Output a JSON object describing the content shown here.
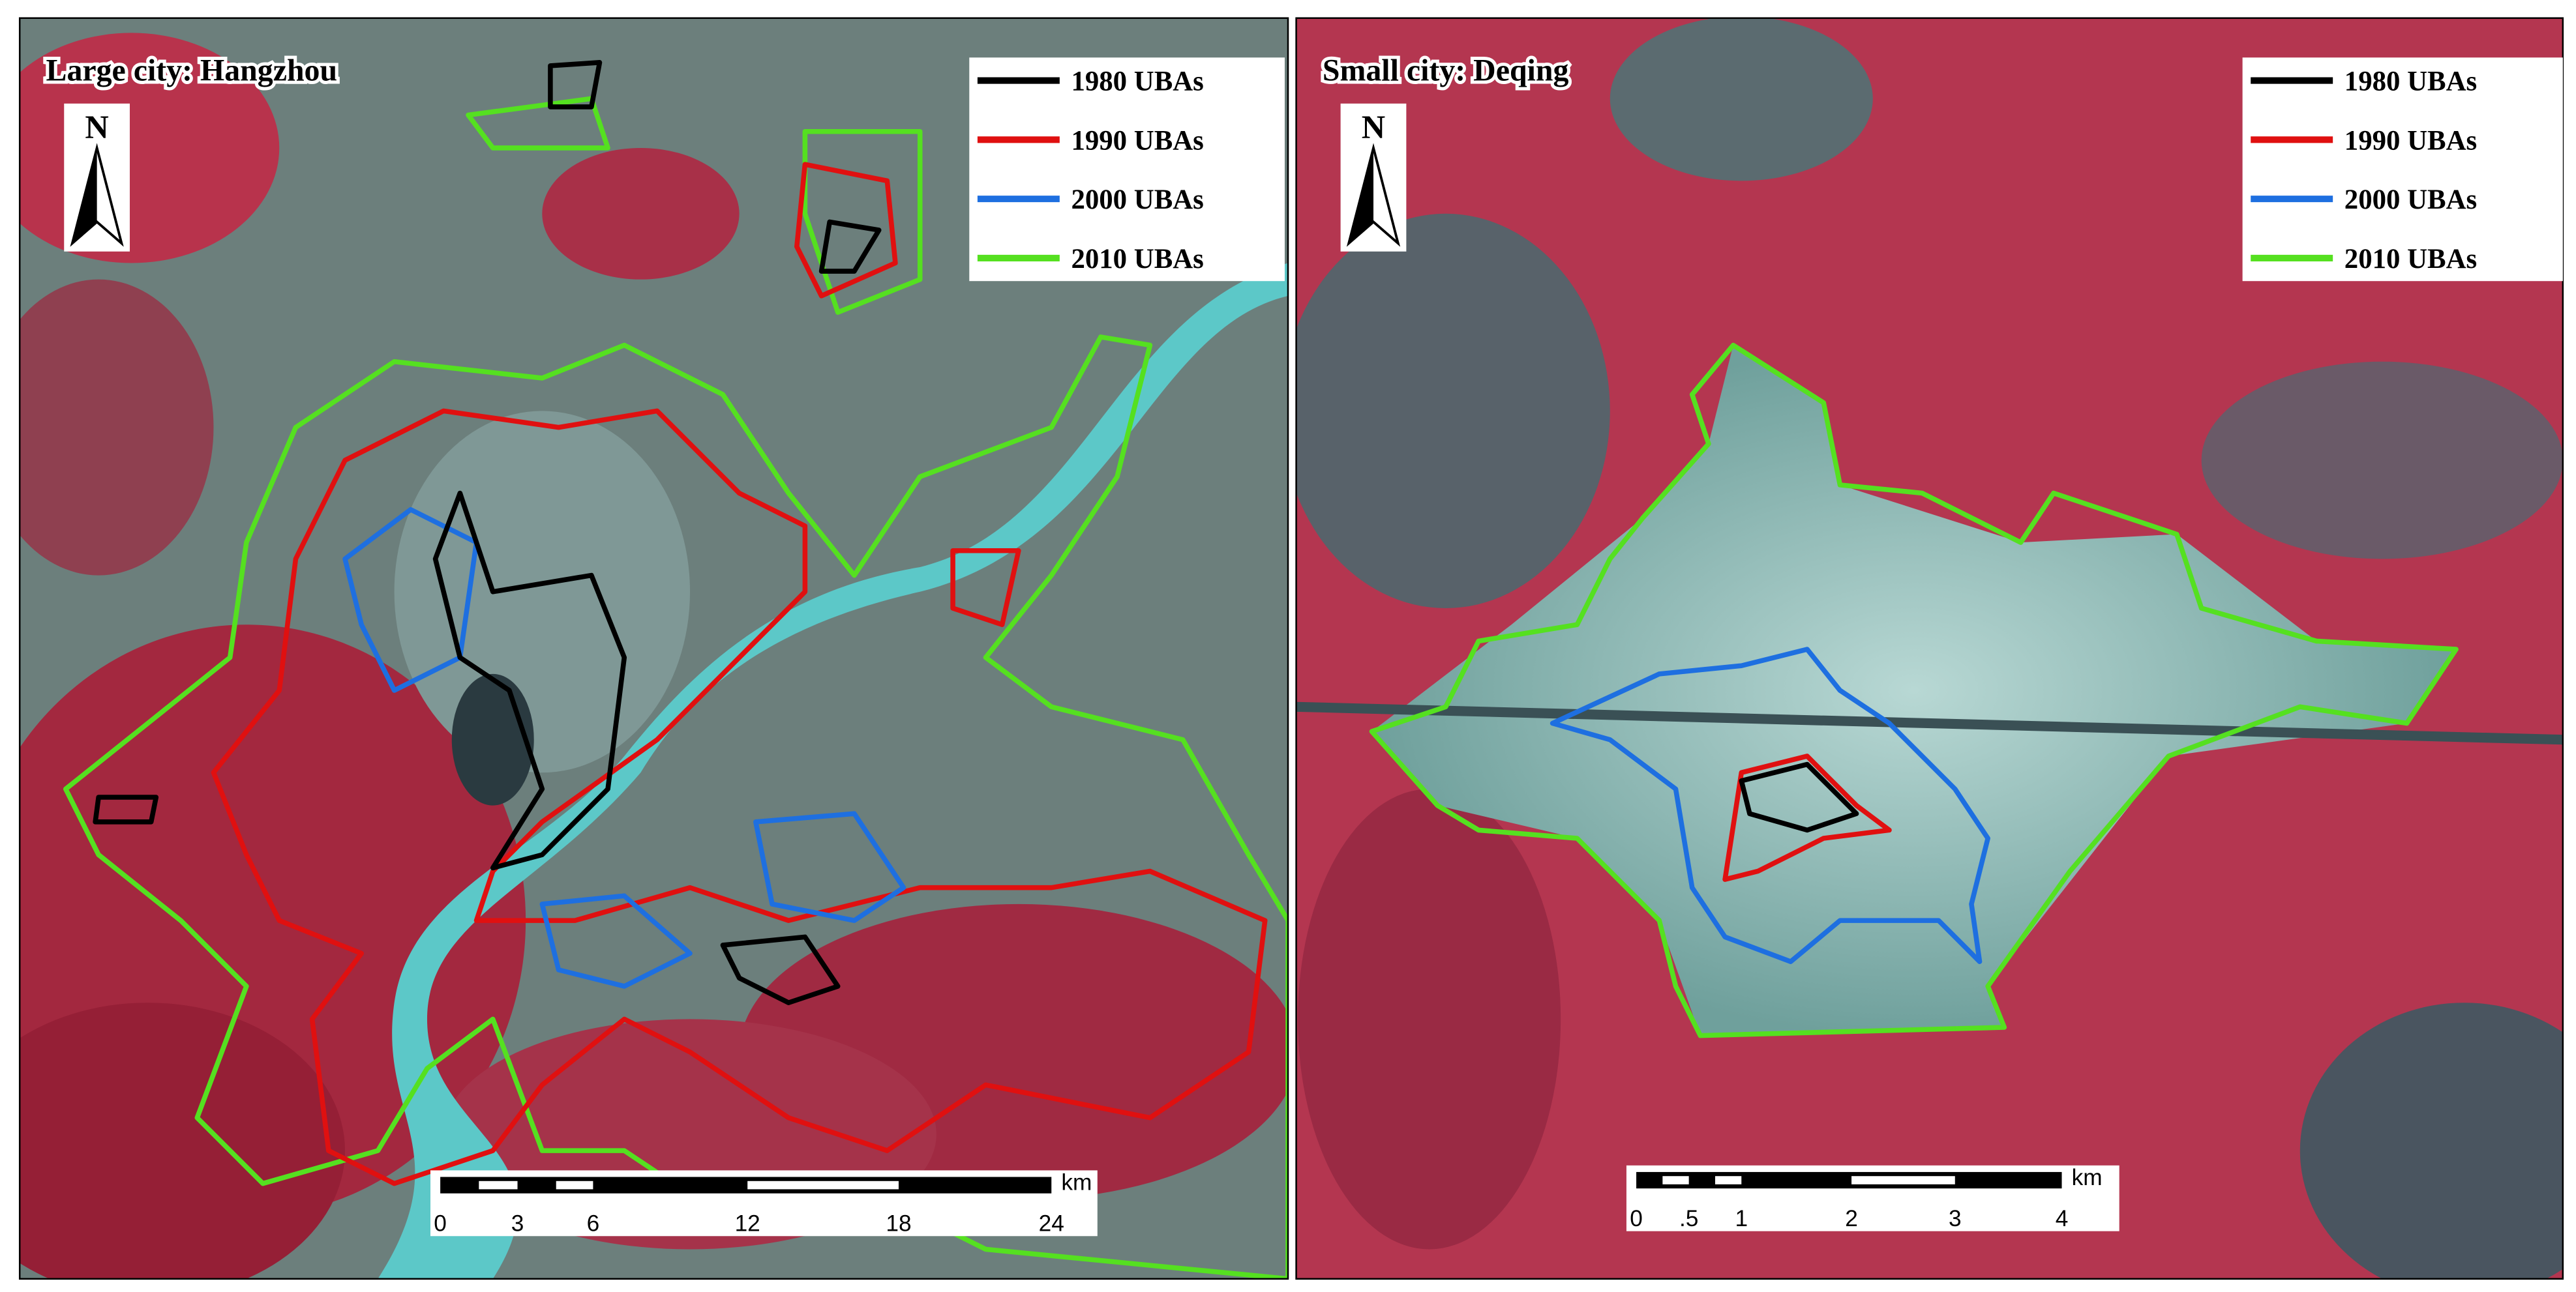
{
  "panels": [
    {
      "title": "Large city: Hangzhou",
      "north": "N",
      "legend": [
        {
          "label": "1980 UBAs",
          "color": "#000000"
        },
        {
          "label": "1990 UBAs",
          "color": "#e01010"
        },
        {
          "label": "2000 UBAs",
          "color": "#1e6fe0"
        },
        {
          "label": "2010 UBAs",
          "color": "#55e020"
        }
      ],
      "scale_bar": {
        "labels": [
          "0",
          "3",
          "6",
          "12",
          "18",
          "24"
        ],
        "unit": "km"
      }
    },
    {
      "title": "Small city: Deqing",
      "north": "N",
      "legend": [
        {
          "label": "1980 UBAs",
          "color": "#000000"
        },
        {
          "label": "1990 UBAs",
          "color": "#e01010"
        },
        {
          "label": "2000 UBAs",
          "color": "#1e6fe0"
        },
        {
          "label": "2010 UBAs",
          "color": "#55e020"
        }
      ],
      "scale_bar": {
        "labels": [
          "0",
          ".5",
          "1",
          "2",
          "3",
          "4"
        ],
        "unit": "km"
      }
    }
  ]
}
